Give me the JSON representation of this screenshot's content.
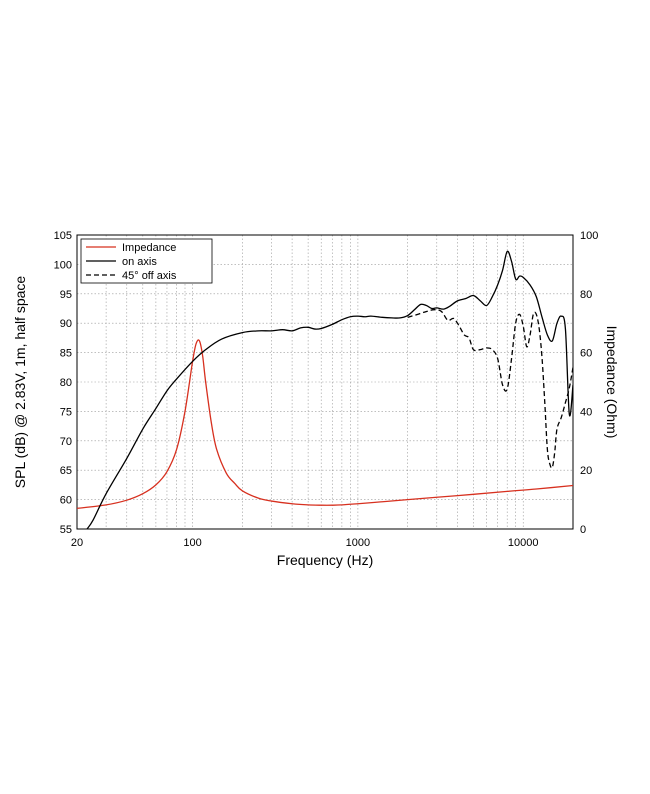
{
  "chart_data": {
    "type": "line",
    "xlabel": "Frequency (Hz)",
    "ylabel": "SPL (dB) @ 2.83V, 1m, half space",
    "y2label": "Impedance (Ohm)",
    "xscale": "log",
    "xlim": [
      20,
      20000
    ],
    "ylim": [
      55,
      105
    ],
    "y2lim": [
      0,
      100
    ],
    "xticks": [
      20,
      100,
      1000,
      10000
    ],
    "xtick_labels": [
      "20",
      "100",
      "1000",
      "10000"
    ],
    "yticks": [
      55,
      60,
      65,
      70,
      75,
      80,
      85,
      90,
      95,
      100,
      105
    ],
    "y2ticks": [
      0,
      20,
      40,
      60,
      80,
      100
    ],
    "grid": true,
    "legend_position": "top-left",
    "series": [
      {
        "name": "Impedance",
        "axis": "right",
        "color": "#d7301f",
        "style": "solid",
        "x": [
          20,
          30,
          40,
          50,
          60,
          70,
          80,
          90,
          100,
          105,
          110,
          115,
          120,
          130,
          140,
          160,
          180,
          200,
          250,
          300,
          400,
          500,
          600,
          700,
          800,
          1000,
          1500,
          2000,
          3000,
          5000,
          8000,
          12000,
          20000
        ],
        "values": [
          7,
          8.2,
          9.8,
          12,
          15,
          19.5,
          27,
          40,
          57,
          63,
          64,
          59,
          50,
          36,
          27,
          19,
          15.5,
          13,
          10.5,
          9.5,
          8.6,
          8.2,
          8.1,
          8.1,
          8.2,
          8.6,
          9.4,
          10,
          10.8,
          11.8,
          12.8,
          13.6,
          14.8
        ]
      },
      {
        "name": "on axis",
        "axis": "left",
        "color": "#000000",
        "style": "solid",
        "x": [
          23,
          25,
          30,
          40,
          50,
          60,
          70,
          80,
          100,
          120,
          150,
          200,
          250,
          300,
          350,
          400,
          450,
          500,
          550,
          600,
          700,
          800,
          900,
          1000,
          1100,
          1200,
          1400,
          1600,
          1800,
          2000,
          2200,
          2400,
          2600,
          2800,
          3000,
          3300,
          3600,
          4000,
          4500,
          5000,
          5500,
          6000,
          6500,
          7000,
          7500,
          8000,
          8500,
          9000,
          9500,
          10000,
          11000,
          12000,
          13000,
          14000,
          15000,
          16000,
          17000,
          18000,
          19000,
          20000
        ],
        "values": [
          55,
          56.5,
          61,
          67,
          72,
          75.5,
          78.5,
          80.5,
          83.5,
          85.5,
          87.3,
          88.4,
          88.7,
          88.7,
          88.9,
          88.7,
          89.2,
          89.3,
          89.0,
          89.1,
          89.8,
          90.6,
          91.1,
          91.2,
          91.1,
          91.2,
          91.0,
          90.9,
          90.9,
          91.3,
          92.3,
          93.2,
          93.0,
          92.5,
          92.6,
          92.4,
          92.9,
          93.8,
          94.2,
          94.7,
          93.8,
          93.0,
          94.5,
          96.5,
          99.0,
          102.2,
          100.5,
          97.5,
          98.0,
          97.8,
          96.5,
          94.5,
          91.0,
          88.0,
          87.0,
          90.0,
          91.2,
          89.0,
          74.5,
          79.5
        ]
      },
      {
        "name": "45° off axis",
        "axis": "left",
        "color": "#000000",
        "style": "dashed",
        "x": [
          2000,
          2300,
          2600,
          2900,
          3200,
          3500,
          3800,
          4100,
          4400,
          4700,
          5000,
          5500,
          6000,
          6500,
          7000,
          7500,
          8000,
          8500,
          9000,
          9500,
          10000,
          10500,
          11000,
          11500,
          12000,
          12500,
          13000,
          13500,
          14000,
          14500,
          15000,
          15500,
          16000,
          17000,
          18000,
          19000,
          20000
        ],
        "values": [
          91.0,
          91.5,
          92.0,
          92.3,
          92.0,
          90.5,
          90.8,
          89.5,
          88.0,
          87.5,
          85.5,
          85.5,
          85.8,
          85.5,
          84.0,
          79.5,
          78.8,
          84.0,
          90.0,
          91.5,
          89.5,
          86.0,
          88.0,
          91.5,
          91.5,
          89.0,
          84.0,
          76.5,
          68.5,
          66.0,
          65.5,
          68.0,
          72.0,
          74.0,
          76.5,
          79.0,
          82.5
        ]
      }
    ]
  }
}
